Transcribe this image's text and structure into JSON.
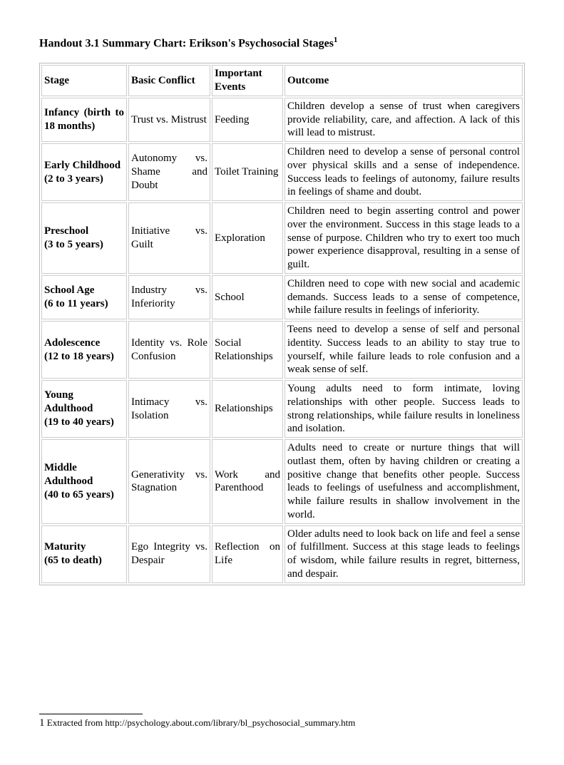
{
  "title_main": "Handout 3.1 Summary Chart: Erikson's Psychosocial Stages",
  "title_sup": "1",
  "headers": {
    "stage": "Stage",
    "conflict": "Basic Conflict",
    "events": "Important Events",
    "outcome": "Outcome"
  },
  "rows": [
    {
      "stage": "Infancy (birth to 18 months)",
      "conflict": "Trust vs. Mistrust",
      "events": "Feeding",
      "outcome": "Children develop a sense of trust when caregivers provide reliability, care, and affection. A lack of this will lead to mistrust."
    },
    {
      "stage": "Early Childhood\n(2 to 3 years)",
      "conflict": "Autonomy vs. Shame and Doubt",
      "events": "Toilet Training",
      "outcome": "Children need to develop a sense of personal control over physical skills and a sense of independence. Success leads to feelings of autonomy, failure results in feelings of shame and doubt."
    },
    {
      "stage": "Preschool\n(3 to 5 years)",
      "conflict": "Initiative vs. Guilt",
      "events": "Exploration",
      "outcome": "Children need to begin asserting control and power over the environment. Success in this stage leads to a sense of purpose. Children who try to exert too much power experience disapproval, resulting in a sense of guilt."
    },
    {
      "stage": "School Age\n(6 to 11 years)",
      "conflict": "Industry vs. Inferiority",
      "events": "School",
      "outcome": "Children need to cope with new social and academic demands. Success leads to a sense of competence, while failure results in feelings of inferiority."
    },
    {
      "stage": "Adolescence\n(12 to 18 years)",
      "conflict": "Identity vs. Role Confusion",
      "events": "Social Relationships",
      "outcome": "Teens need to develop a sense of self and personal identity. Success leads to an ability to stay true to yourself, while failure leads to role confusion and a weak sense of self."
    },
    {
      "stage": "Young Adulthood\n(19 to 40 years)",
      "conflict": "Intimacy vs. Isolation",
      "events": "Relationships",
      "outcome": "Young adults need to form intimate, loving relationships with other people. Success leads to strong relationships, while failure results in loneliness and isolation."
    },
    {
      "stage": "Middle Adulthood\n(40 to 65 years)",
      "conflict": "Generativity vs. Stagnation",
      "events": "Work and Parenthood",
      "outcome": "Adults need to create or nurture things that will outlast them, often by having children or creating a positive change that benefits other people. Success leads to feelings of usefulness and accomplishment, while failure results in shallow involvement in the world."
    },
    {
      "stage": "Maturity\n(65 to death)",
      "conflict": "Ego Integrity vs. Despair",
      "events": "Reflection on Life",
      "outcome": "Older adults need to look back on life and feel a sense of fulfillment. Success at this stage leads to feelings of wisdom, while failure results in regret, bitterness, and despair."
    }
  ],
  "footnote_num": "1",
  "footnote_text": " Extracted from http://psychology.about.com/library/bl_psychosocial_summary.htm"
}
